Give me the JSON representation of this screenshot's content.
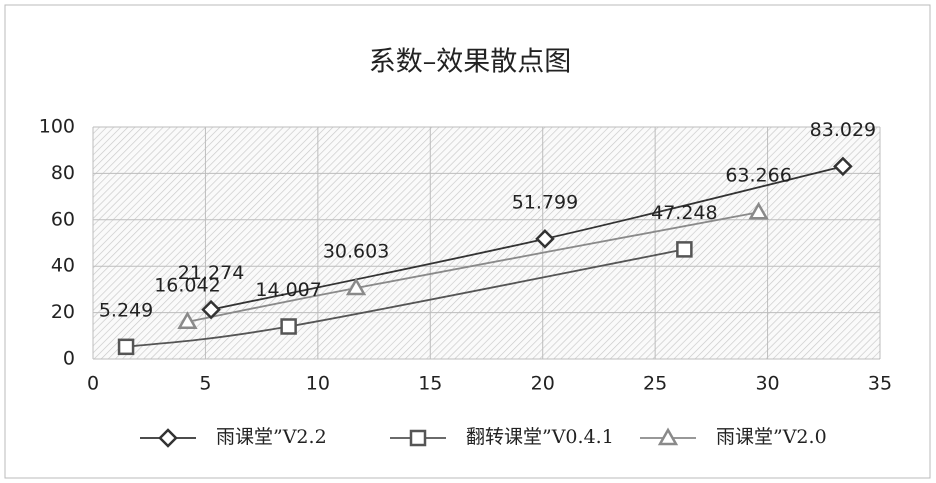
{
  "chart_data": {
    "type": "scatter",
    "title": "系数–效果散点图",
    "xlim": [
      0,
      35
    ],
    "xticks": [
      0,
      5,
      10,
      15,
      20,
      25,
      30,
      35
    ],
    "ylim": [
      0,
      100
    ],
    "yticks": [
      0,
      20,
      40,
      60,
      80,
      100
    ],
    "grid": true,
    "legend": "bottom",
    "series": [
      {
        "name": "雨课堂”V2.2",
        "color": "#333333",
        "marker": "diamond",
        "x": [
          5.25,
          20.1,
          33.35
        ],
        "values": [
          21.274,
          51.799,
          83.029
        ]
      },
      {
        "name": "翻转课堂”V0.4.1",
        "color": "#555555",
        "marker": "square",
        "x": [
          1.47,
          8.7,
          26.3
        ],
        "values": [
          5.249,
          14.007,
          47.248
        ]
      },
      {
        "name": "雨课堂”V2.0",
        "color": "#8a8a8a",
        "marker": "triangle",
        "x": [
          4.2,
          11.7,
          29.6
        ],
        "values": [
          16.042,
          30.603,
          63.266
        ]
      }
    ]
  }
}
